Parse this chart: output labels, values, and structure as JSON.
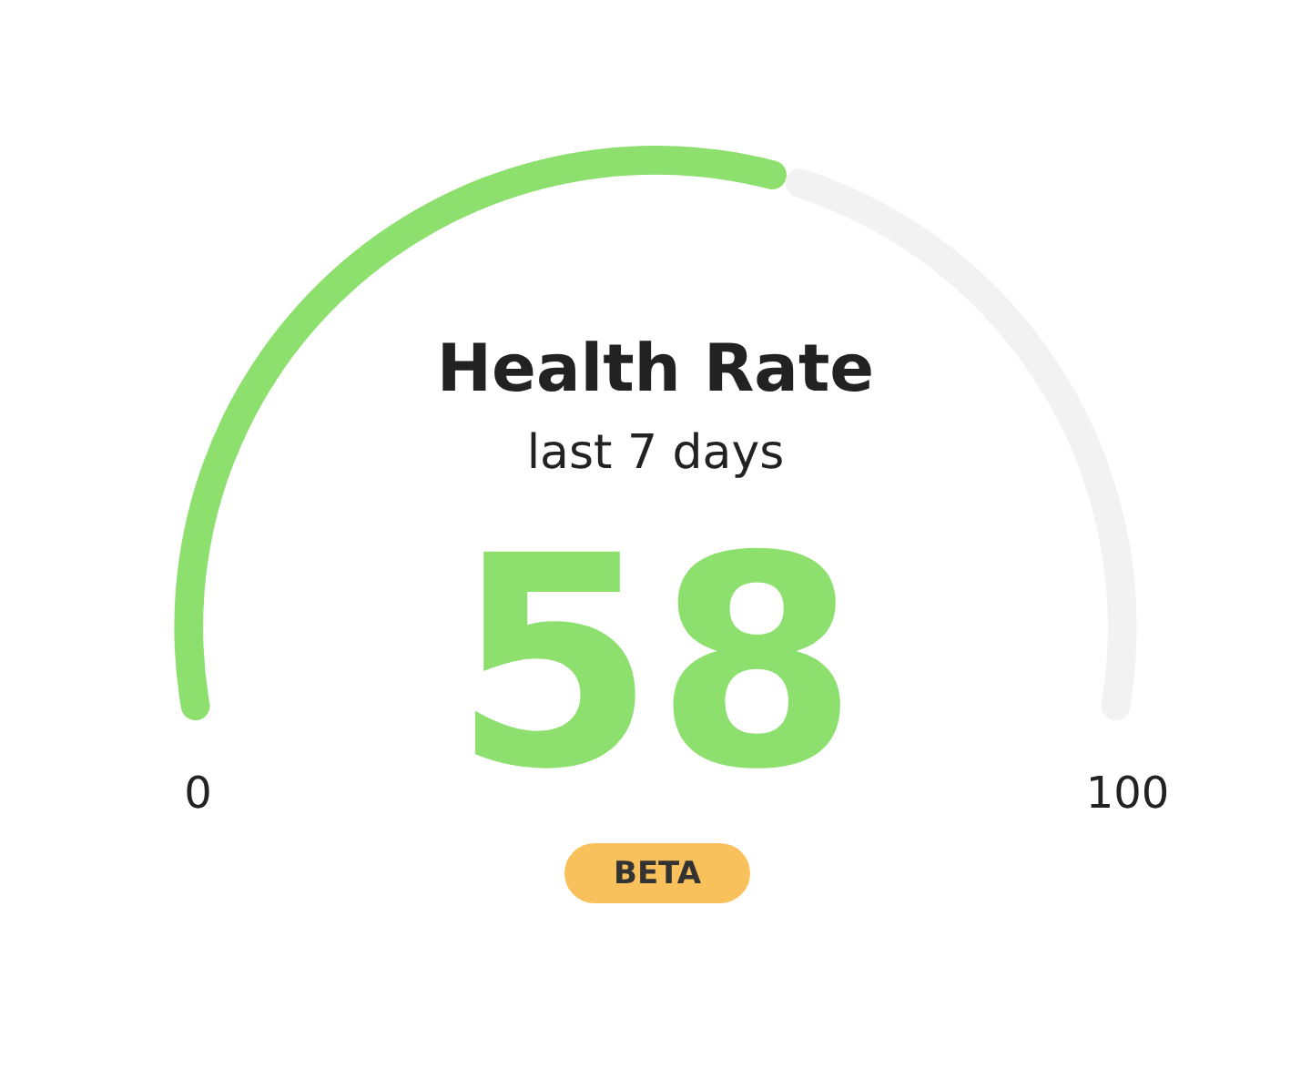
{
  "chart_data": {
    "type": "donut",
    "title": "Health Rate",
    "subtitle": "last 7 days",
    "categories": [
      null,
      null
    ],
    "values": [
      58,
      42
    ],
    "colors": [
      "#8ddf6e",
      "#f2f2f2"
    ],
    "annotations": [
      "58",
      "0",
      "100",
      "BETA"
    ]
  }
}
